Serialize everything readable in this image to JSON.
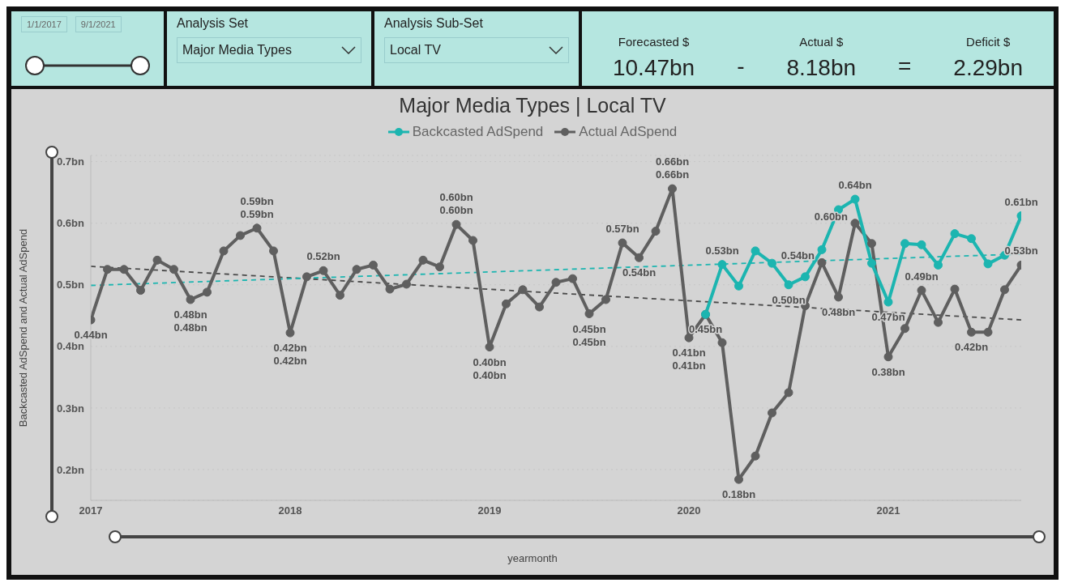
{
  "chart_data": {
    "type": "line",
    "title": "Major Media Types | Local TV",
    "xlabel": "yearmonth",
    "ylabel": "Backcasted AdSpend and Actual AdSpend",
    "x": [
      "2017-01",
      "2017-02",
      "2017-03",
      "2017-04",
      "2017-05",
      "2017-06",
      "2017-07",
      "2017-08",
      "2017-09",
      "2017-10",
      "2017-11",
      "2017-12",
      "2018-01",
      "2018-02",
      "2018-03",
      "2018-04",
      "2018-05",
      "2018-06",
      "2018-07",
      "2018-08",
      "2018-09",
      "2018-10",
      "2018-11",
      "2018-12",
      "2019-01",
      "2019-02",
      "2019-03",
      "2019-04",
      "2019-05",
      "2019-06",
      "2019-07",
      "2019-08",
      "2019-09",
      "2019-10",
      "2019-11",
      "2019-12",
      "2020-01",
      "2020-02",
      "2020-03",
      "2020-04",
      "2020-05",
      "2020-06",
      "2020-07",
      "2020-08",
      "2020-09",
      "2020-10",
      "2020-11",
      "2020-12",
      "2021-01",
      "2021-02",
      "2021-03",
      "2021-04",
      "2021-05",
      "2021-06",
      "2021-07",
      "2021-08",
      "2021-09"
    ],
    "series": [
      {
        "name": "Backcasted AdSpend",
        "color": "#1cb5b0",
        "values": [
          null,
          null,
          null,
          null,
          null,
          null,
          null,
          null,
          null,
          null,
          null,
          null,
          null,
          null,
          null,
          null,
          null,
          null,
          null,
          null,
          null,
          null,
          null,
          null,
          null,
          null,
          null,
          null,
          null,
          null,
          null,
          null,
          null,
          null,
          null,
          null,
          null,
          0.452,
          0.533,
          0.498,
          0.555,
          0.535,
          0.5,
          0.513,
          0.557,
          0.622,
          0.639,
          0.535,
          0.472,
          0.567,
          0.565,
          0.532,
          0.583,
          0.575,
          0.534,
          0.548,
          0.612
        ]
      },
      {
        "name": "Actual AdSpend",
        "color": "#5f5f5f",
        "values": [
          0.443,
          0.525,
          0.525,
          0.491,
          0.54,
          0.525,
          0.476,
          0.488,
          0.555,
          0.58,
          0.592,
          0.555,
          0.422,
          0.513,
          0.523,
          0.483,
          0.525,
          0.532,
          0.493,
          0.501,
          0.54,
          0.529,
          0.598,
          0.572,
          0.399,
          0.469,
          0.492,
          0.464,
          0.504,
          0.51,
          0.453,
          0.476,
          0.568,
          0.544,
          0.587,
          0.656,
          0.414,
          0.452,
          0.406,
          0.184,
          0.222,
          0.292,
          0.325,
          0.466,
          0.536,
          0.48,
          0.6,
          0.567,
          0.383,
          0.429,
          0.491,
          0.439,
          0.493,
          0.423,
          0.423,
          0.492,
          0.532
        ]
      },
      {
        "type": "line",
        "color": "#1cb5b0",
        "line_style": "dashed",
        "marker": "none",
        "x": [
          "2017-01",
          "2021-09"
        ],
        "values": [
          0.499,
          0.55
        ]
      },
      {
        "type": "line",
        "color": "#4a4a4a",
        "line_style": "dashed",
        "marker": "none",
        "x": [
          "2017-01",
          "2021-09"
        ],
        "values": [
          0.53,
          0.443
        ]
      }
    ],
    "xlim": [
      "2017-01",
      "2021-09"
    ],
    "xticks": [
      "2017",
      "2018",
      "2019",
      "2020",
      "2021"
    ],
    "ylim": [
      0.15,
      0.71
    ],
    "yticks": [
      {
        "value": 0.2,
        "label": "0.2bn"
      },
      {
        "value": 0.3,
        "label": "0.3bn"
      },
      {
        "value": 0.4,
        "label": "0.4bn"
      },
      {
        "value": 0.5,
        "label": "0.5bn"
      },
      {
        "value": 0.6,
        "label": "0.6bn"
      },
      {
        "value": 0.7,
        "label": "0.7bn"
      }
    ],
    "grid": "y",
    "legend": "top",
    "marker": "circle",
    "line_style": "solid",
    "annotations": [
      "1/1/2017",
      "9/1/2021",
      "Analysis Set",
      "Major Media Types",
      "Analysis Sub-Set",
      "Local TV",
      "Forecasted $",
      "10.47bn",
      "-",
      "Actual $",
      "8.18bn",
      "=",
      "Deficit $",
      "2.29bn",
      {
        "text": "0.44bn",
        "x": "2017-01",
        "y": 0.443
      },
      {
        "text": "0.48bn",
        "x": "2017-07",
        "y": 0.476
      },
      {
        "text": "0.48bn",
        "x": "2017-07",
        "y": 0.476
      },
      {
        "text": "0.59bn",
        "x": "2017-11",
        "y": 0.592
      },
      {
        "text": "0.59bn",
        "x": "2017-11",
        "y": 0.592
      },
      {
        "text": "0.42bn",
        "x": "2018-01",
        "y": 0.422
      },
      {
        "text": "0.42bn",
        "x": "2018-01",
        "y": 0.422
      },
      {
        "text": "0.52bn",
        "x": "2018-03",
        "y": 0.523
      },
      {
        "text": "0.60bn",
        "x": "2018-11",
        "y": 0.598
      },
      {
        "text": "0.60bn",
        "x": "2018-11",
        "y": 0.598
      },
      {
        "text": "0.40bn",
        "x": "2019-01",
        "y": 0.399
      },
      {
        "text": "0.40bn",
        "x": "2019-01",
        "y": 0.399
      },
      {
        "text": "0.45bn",
        "x": "2019-07",
        "y": 0.453
      },
      {
        "text": "0.45bn",
        "x": "2019-07",
        "y": 0.453
      },
      {
        "text": "0.57bn",
        "x": "2019-09",
        "y": 0.568
      },
      {
        "text": "0.54bn",
        "x": "2019-10",
        "y": 0.544
      },
      {
        "text": "0.66bn",
        "x": "2019-12",
        "y": 0.656
      },
      {
        "text": "0.66bn",
        "x": "2019-12",
        "y": 0.656
      },
      {
        "text": "0.41bn",
        "x": "2020-01",
        "y": 0.414
      },
      {
        "text": "0.41bn",
        "x": "2020-01",
        "y": 0.414
      },
      {
        "text": "0.45bn",
        "x": "2020-02",
        "y": 0.452
      },
      {
        "text": "0.53bn",
        "x": "2020-03",
        "y": 0.533
      },
      {
        "text": "0.18bn",
        "x": "2020-04",
        "y": 0.184
      },
      {
        "text": "0.50bn",
        "x": "2020-07",
        "y": 0.5
      },
      {
        "text": "0.54bn",
        "x": "2020-09",
        "y": 0.536
      },
      {
        "text": "0.48bn",
        "x": "2020-10",
        "y": 0.48
      },
      {
        "text": "0.64bn",
        "x": "2020-11",
        "y": 0.639
      },
      {
        "text": "0.60bn",
        "x": "2020-11",
        "y": 0.6
      },
      {
        "text": "0.47bn",
        "x": "2021-01",
        "y": 0.472
      },
      {
        "text": "0.38bn",
        "x": "2021-01",
        "y": 0.383
      },
      {
        "text": "0.49bn",
        "x": "2021-03",
        "y": 0.491
      },
      {
        "text": "0.42bn",
        "x": "2021-06",
        "y": 0.423
      },
      {
        "text": "0.61bn",
        "x": "2021-09",
        "y": 0.612
      },
      {
        "text": "0.53bn",
        "x": "2021-09",
        "y": 0.532
      }
    ]
  }
}
